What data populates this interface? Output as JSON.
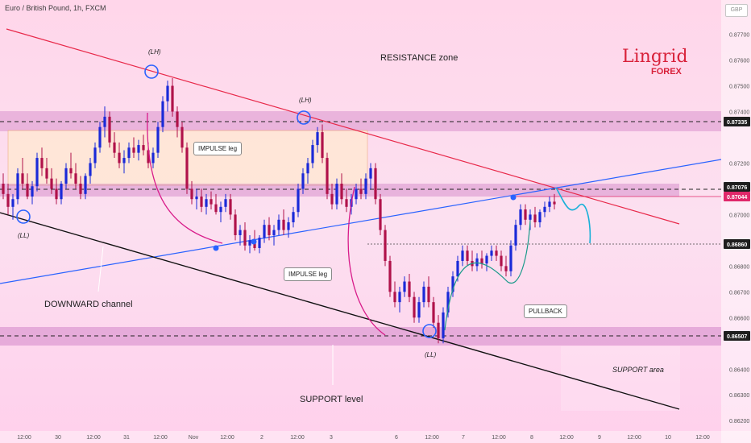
{
  "header": {
    "title": "Euro / British Pound, 1h, FXCM",
    "currency": "GBP"
  },
  "logo": {
    "main": "Lingrid",
    "sub": "FOREX"
  },
  "annotations": {
    "resistance_zone": "RESISTANCE zone",
    "impulse_leg_1": "IMPULSE leg",
    "impulse_leg_2": "IMPULSE leg",
    "pullback": "PULLBACK",
    "downward_channel": "DOWNWARD channel",
    "support_level": "SUPPORT level",
    "support_area": "SUPPORT area",
    "lh_1": "(LH)",
    "lh_2": "(LH)",
    "ll_1": "(LL)",
    "ll_2": "(LL)"
  },
  "chart_data": {
    "type": "candlestick",
    "title": "Euro / British Pound, 1h, FXCM",
    "ylim": [
      0.8616,
      0.8778
    ],
    "y_ticks": [
      0.877,
      0.876,
      0.875,
      0.874,
      0.872,
      0.871,
      0.87,
      0.868,
      0.867,
      0.866,
      0.864,
      0.863,
      0.862
    ],
    "highlighted_levels": [
      {
        "value": "0.87335",
        "color": "#1e1e1e"
      },
      {
        "value": "0.87076",
        "color": "#1e1e1e"
      },
      {
        "value": "0.87044",
        "color": "#e0286a"
      },
      {
        "value": "0.86860",
        "color": "#1e1e1e"
      },
      {
        "value": "0.86507",
        "color": "#1e1e1e"
      }
    ],
    "x_ticks": [
      "12:00",
      "30",
      "12:00",
      "31",
      "12:00",
      "Nov",
      "12:00",
      "2",
      "12:00",
      "3",
      "6",
      "12:00",
      "7",
      "12:00",
      "8",
      "12:00",
      "9",
      "12:00",
      "10",
      "12:00"
    ],
    "candles": [
      [
        0.8712,
        0.8716,
        0.8706,
        0.8708
      ],
      [
        0.8708,
        0.8712,
        0.87,
        0.8703
      ],
      [
        0.8703,
        0.8708,
        0.8698,
        0.8706
      ],
      [
        0.8706,
        0.8718,
        0.8704,
        0.8716
      ],
      [
        0.8716,
        0.8722,
        0.871,
        0.8712
      ],
      [
        0.8712,
        0.8716,
        0.8706,
        0.8707
      ],
      [
        0.8707,
        0.8713,
        0.8704,
        0.8711
      ],
      [
        0.8711,
        0.8724,
        0.8709,
        0.8722
      ],
      [
        0.8722,
        0.8726,
        0.8715,
        0.8718
      ],
      [
        0.8718,
        0.8722,
        0.8712,
        0.8714
      ],
      [
        0.8714,
        0.8718,
        0.8708,
        0.871
      ],
      [
        0.871,
        0.8714,
        0.8704,
        0.8706
      ],
      [
        0.8706,
        0.8713,
        0.8704,
        0.8712
      ],
      [
        0.8712,
        0.872,
        0.871,
        0.8718
      ],
      [
        0.8718,
        0.8724,
        0.8714,
        0.8716
      ],
      [
        0.8716,
        0.872,
        0.871,
        0.8712
      ],
      [
        0.8712,
        0.8715,
        0.8706,
        0.8708
      ],
      [
        0.8708,
        0.8716,
        0.8706,
        0.8715
      ],
      [
        0.8715,
        0.8722,
        0.8712,
        0.872
      ],
      [
        0.872,
        0.8728,
        0.8718,
        0.8726
      ],
      [
        0.8726,
        0.8736,
        0.8724,
        0.8734
      ],
      [
        0.8734,
        0.8742,
        0.873,
        0.8738
      ],
      [
        0.8738,
        0.874,
        0.8726,
        0.8728
      ],
      [
        0.8728,
        0.8732,
        0.8722,
        0.8724
      ],
      [
        0.8724,
        0.8728,
        0.8718,
        0.872
      ],
      [
        0.872,
        0.8725,
        0.8716,
        0.8722
      ],
      [
        0.8722,
        0.8728,
        0.872,
        0.8726
      ],
      [
        0.8726,
        0.873,
        0.8722,
        0.8724
      ],
      [
        0.8724,
        0.8729,
        0.8721,
        0.8727
      ],
      [
        0.8727,
        0.8731,
        0.8723,
        0.8725
      ],
      [
        0.8725,
        0.8728,
        0.8718,
        0.872
      ],
      [
        0.872,
        0.8726,
        0.8718,
        0.8724
      ],
      [
        0.8724,
        0.8736,
        0.8722,
        0.8734
      ],
      [
        0.8734,
        0.8746,
        0.8732,
        0.8744
      ],
      [
        0.8744,
        0.8752,
        0.874,
        0.875
      ],
      [
        0.875,
        0.8753,
        0.8738,
        0.874
      ],
      [
        0.874,
        0.8742,
        0.873,
        0.8734
      ],
      [
        0.8734,
        0.8736,
        0.8724,
        0.8726
      ],
      [
        0.8726,
        0.8728,
        0.8708,
        0.871
      ],
      [
        0.871,
        0.8713,
        0.8704,
        0.8706
      ],
      [
        0.8706,
        0.871,
        0.8702,
        0.8707
      ],
      [
        0.8707,
        0.871,
        0.8701,
        0.8703
      ],
      [
        0.8703,
        0.8708,
        0.87,
        0.8706
      ],
      [
        0.8706,
        0.8709,
        0.8702,
        0.8704
      ],
      [
        0.8704,
        0.8708,
        0.87,
        0.8701
      ],
      [
        0.8701,
        0.8705,
        0.8697,
        0.8703
      ],
      [
        0.8703,
        0.8708,
        0.8701,
        0.8706
      ],
      [
        0.8706,
        0.8708,
        0.8698,
        0.87
      ],
      [
        0.87,
        0.8702,
        0.869,
        0.8692
      ],
      [
        0.8692,
        0.8696,
        0.8688,
        0.8694
      ],
      [
        0.8694,
        0.8697,
        0.8686,
        0.8688
      ],
      [
        0.8688,
        0.8692,
        0.8685,
        0.869
      ],
      [
        0.869,
        0.8694,
        0.8686,
        0.8687
      ],
      [
        0.8687,
        0.8692,
        0.8685,
        0.8691
      ],
      [
        0.8691,
        0.8698,
        0.8689,
        0.8696
      ],
      [
        0.8696,
        0.8699,
        0.869,
        0.8692
      ],
      [
        0.8692,
        0.8696,
        0.8688,
        0.8694
      ],
      [
        0.8694,
        0.87,
        0.8692,
        0.8698
      ],
      [
        0.8698,
        0.8702,
        0.8692,
        0.8694
      ],
      [
        0.8694,
        0.8699,
        0.8691,
        0.8697
      ],
      [
        0.8697,
        0.8703,
        0.8695,
        0.8701
      ],
      [
        0.8701,
        0.8712,
        0.8699,
        0.871
      ],
      [
        0.871,
        0.8718,
        0.8708,
        0.8716
      ],
      [
        0.8716,
        0.8722,
        0.8712,
        0.872
      ],
      [
        0.872,
        0.8729,
        0.8718,
        0.8727
      ],
      [
        0.8727,
        0.8734,
        0.8724,
        0.8732
      ],
      [
        0.8732,
        0.8735,
        0.872,
        0.8722
      ],
      [
        0.8722,
        0.8724,
        0.8706,
        0.8708
      ],
      [
        0.8708,
        0.8712,
        0.8702,
        0.8704
      ],
      [
        0.8704,
        0.8714,
        0.8702,
        0.8712
      ],
      [
        0.8712,
        0.8716,
        0.8704,
        0.8706
      ],
      [
        0.8706,
        0.871,
        0.8701,
        0.8703
      ],
      [
        0.8703,
        0.8708,
        0.87,
        0.8706
      ],
      [
        0.8706,
        0.8712,
        0.8704,
        0.871
      ],
      [
        0.871,
        0.8714,
        0.8706,
        0.8708
      ],
      [
        0.8708,
        0.8716,
        0.8706,
        0.8714
      ],
      [
        0.8714,
        0.872,
        0.871,
        0.8718
      ],
      [
        0.8718,
        0.872,
        0.8704,
        0.8706
      ],
      [
        0.8706,
        0.8708,
        0.8692,
        0.8694
      ],
      [
        0.8694,
        0.8696,
        0.868,
        0.8682
      ],
      [
        0.8682,
        0.8684,
        0.8668,
        0.867
      ],
      [
        0.867,
        0.8674,
        0.8664,
        0.8666
      ],
      [
        0.8666,
        0.8672,
        0.8662,
        0.867
      ],
      [
        0.867,
        0.8676,
        0.8668,
        0.8674
      ],
      [
        0.8674,
        0.8677,
        0.8666,
        0.8668
      ],
      [
        0.8668,
        0.867,
        0.8658,
        0.866
      ],
      [
        0.866,
        0.8668,
        0.8658,
        0.8666
      ],
      [
        0.8666,
        0.8674,
        0.8664,
        0.8672
      ],
      [
        0.8672,
        0.8676,
        0.8664,
        0.8666
      ],
      [
        0.8666,
        0.8668,
        0.8656,
        0.8658
      ],
      [
        0.8658,
        0.8661,
        0.865,
        0.8652
      ],
      [
        0.8652,
        0.8664,
        0.865,
        0.8662
      ],
      [
        0.8662,
        0.8672,
        0.866,
        0.867
      ],
      [
        0.867,
        0.8678,
        0.8668,
        0.8676
      ],
      [
        0.8676,
        0.8684,
        0.8674,
        0.8682
      ],
      [
        0.8682,
        0.8688,
        0.868,
        0.8686
      ],
      [
        0.8686,
        0.8688,
        0.868,
        0.8682
      ],
      [
        0.8682,
        0.8686,
        0.8678,
        0.868
      ],
      [
        0.868,
        0.8685,
        0.8678,
        0.8683
      ],
      [
        0.8683,
        0.8686,
        0.8679,
        0.8681
      ],
      [
        0.8681,
        0.8685,
        0.8678,
        0.8684
      ],
      [
        0.8684,
        0.8688,
        0.8682,
        0.8686
      ],
      [
        0.8686,
        0.8688,
        0.8682,
        0.8684
      ],
      [
        0.8684,
        0.8686,
        0.8678,
        0.868
      ],
      [
        0.868,
        0.8684,
        0.8676,
        0.8678
      ],
      [
        0.8678,
        0.869,
        0.8676,
        0.8688
      ],
      [
        0.8688,
        0.8698,
        0.8686,
        0.8696
      ],
      [
        0.8696,
        0.8704,
        0.8694,
        0.8702
      ],
      [
        0.8702,
        0.8704,
        0.8696,
        0.8698
      ],
      [
        0.8698,
        0.8702,
        0.8694,
        0.87
      ],
      [
        0.87,
        0.8703,
        0.8695,
        0.8697
      ],
      [
        0.8697,
        0.8702,
        0.8695,
        0.8701
      ],
      [
        0.8701,
        0.8705,
        0.8699,
        0.8703
      ],
      [
        0.8703,
        0.8707,
        0.8701,
        0.8705
      ],
      [
        0.8705,
        0.8708,
        0.8702,
        0.8704
      ]
    ]
  }
}
